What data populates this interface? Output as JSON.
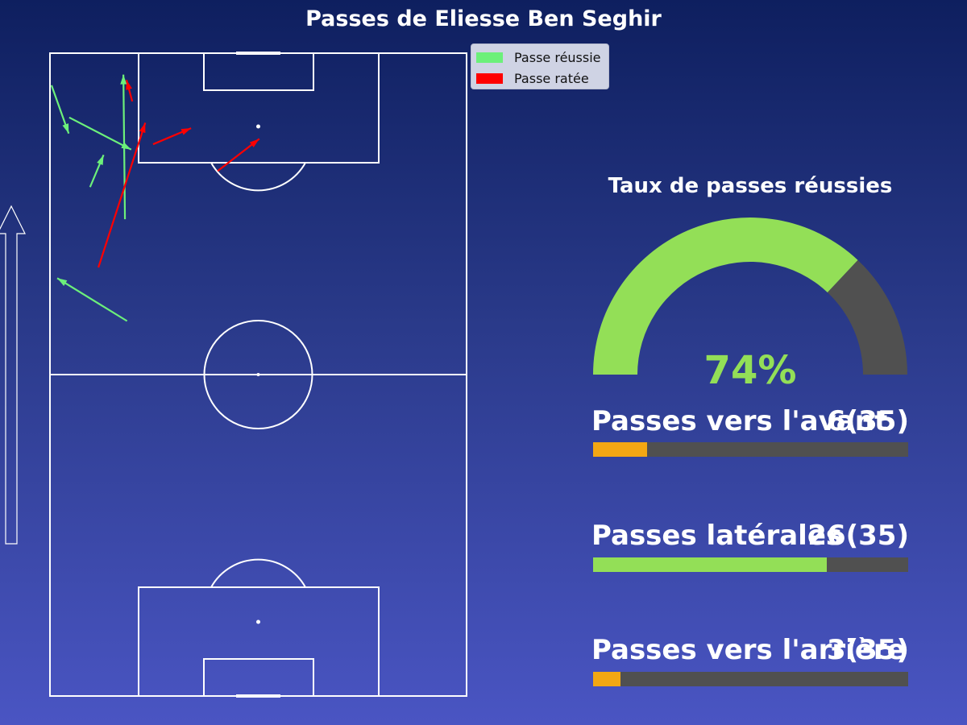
{
  "title": "Passes de Eliesse Ben Seghir",
  "legend": {
    "success_label": "Passe réussie",
    "fail_label": "Passe ratée",
    "success_color": "#6cf07a",
    "fail_color": "#ff0000"
  },
  "gauge": {
    "title": "Taux de passes réussies",
    "percent_label": "74%",
    "value": 0.74,
    "fill_color": "#93df57",
    "track_color": "#505050"
  },
  "stats": [
    {
      "label": "Passes vers l'avant",
      "value_text": "6(35)",
      "count": 6,
      "total": 35,
      "color": "#f3a713"
    },
    {
      "label": "Passes latérales",
      "value_text": "26(35)",
      "count": 26,
      "total": 35,
      "color": "#93df57"
    },
    {
      "label": "Passes vers l'arrière",
      "value_text": "3(35)",
      "count": 3,
      "total": 35,
      "color": "#f3a713"
    }
  ],
  "chart_data": {
    "type": "scatter",
    "title": "Passes de Eliesse Ben Seghir",
    "description_note": "",
    "pitch_units": "StatsBomb 120x80",
    "passes": [
      {
        "x1": 114,
        "y1": 0.3,
        "x2": 105,
        "y2": 3.6,
        "outcome": "success"
      },
      {
        "x1": 111,
        "y1": 15.8,
        "x2": 115,
        "y2": 14.7,
        "outcome": "fail"
      },
      {
        "x1": 89,
        "y1": 14.4,
        "x2": 116,
        "y2": 14.1,
        "outcome": "success"
      },
      {
        "x1": 108,
        "y1": 3.7,
        "x2": 102,
        "y2": 15.6,
        "outcome": "success"
      },
      {
        "x1": 103,
        "y1": 19.8,
        "x2": 106,
        "y2": 27.1,
        "outcome": "fail"
      },
      {
        "x1": 98,
        "y1": 32.2,
        "x2": 104,
        "y2": 40.2,
        "outcome": "fail"
      },
      {
        "x1": 80,
        "y1": 9.3,
        "x2": 107,
        "y2": 18.3,
        "outcome": "fail"
      },
      {
        "x1": 70,
        "y1": 14.8,
        "x2": 78,
        "y2": 1.4,
        "outcome": "success"
      },
      {
        "x1": 95,
        "y1": 7.7,
        "x2": 101,
        "y2": 10.3,
        "outcome": "success"
      }
    ]
  }
}
